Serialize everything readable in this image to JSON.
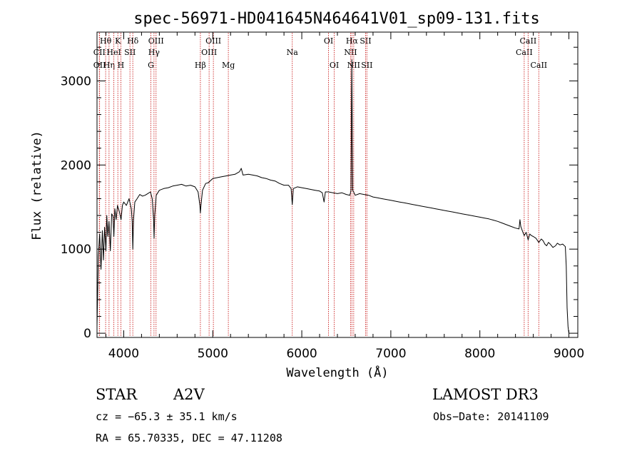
{
  "chart_data": {
    "type": "line",
    "title": "spec-56971-HD041645N464641V01_sp09-131.fits",
    "xlabel": "Wavelength (Å)",
    "ylabel": "Flux (relative)",
    "xlim": [
      3700,
      9100
    ],
    "ylim": [
      -50,
      3580
    ],
    "x_ticks": [
      4000,
      5000,
      6000,
      7000,
      8000,
      9000
    ],
    "x_tick_labels": [
      "4000",
      "5000",
      "6000",
      "7000",
      "8000",
      "9000"
    ],
    "y_ticks": [
      0,
      1000,
      2000,
      3000
    ],
    "y_tick_labels": [
      "0",
      "1000",
      "2000",
      "3000"
    ],
    "x_minor_step": 200,
    "y_minor_step": 200,
    "series": [
      {
        "name": "flux",
        "points": [
          [
            3700,
            80
          ],
          [
            3715,
            920
          ],
          [
            3730,
            1180
          ],
          [
            3745,
            760
          ],
          [
            3760,
            1220
          ],
          [
            3772,
            870
          ],
          [
            3785,
            1260
          ],
          [
            3800,
            980
          ],
          [
            3810,
            1400
          ],
          [
            3822,
            1150
          ],
          [
            3835,
            1330
          ],
          [
            3850,
            980
          ],
          [
            3865,
            1420
          ],
          [
            3880,
            1390
          ],
          [
            3889,
            1150
          ],
          [
            3900,
            1480
          ],
          [
            3915,
            1350
          ],
          [
            3930,
            1520
          ],
          [
            3950,
            1450
          ],
          [
            3970,
            1350
          ],
          [
            3985,
            1520
          ],
          [
            4000,
            1560
          ],
          [
            4030,
            1520
          ],
          [
            4060,
            1600
          ],
          [
            4085,
            1480
          ],
          [
            4095,
            1330
          ],
          [
            4102,
            1000
          ],
          [
            4110,
            1350
          ],
          [
            4125,
            1560
          ],
          [
            4150,
            1600
          ],
          [
            4180,
            1650
          ],
          [
            4210,
            1630
          ],
          [
            4240,
            1640
          ],
          [
            4270,
            1660
          ],
          [
            4300,
            1680
          ],
          [
            4320,
            1600
          ],
          [
            4335,
            1350
          ],
          [
            4341,
            1130
          ],
          [
            4348,
            1400
          ],
          [
            4365,
            1640
          ],
          [
            4400,
            1700
          ],
          [
            4450,
            1720
          ],
          [
            4500,
            1730
          ],
          [
            4550,
            1750
          ],
          [
            4600,
            1760
          ],
          [
            4650,
            1770
          ],
          [
            4700,
            1750
          ],
          [
            4750,
            1760
          ],
          [
            4800,
            1740
          ],
          [
            4835,
            1680
          ],
          [
            4855,
            1520
          ],
          [
            4861,
            1430
          ],
          [
            4867,
            1520
          ],
          [
            4885,
            1700
          ],
          [
            4920,
            1780
          ],
          [
            4950,
            1790
          ],
          [
            5000,
            1840
          ],
          [
            5050,
            1850
          ],
          [
            5100,
            1860
          ],
          [
            5150,
            1870
          ],
          [
            5200,
            1880
          ],
          [
            5250,
            1890
          ],
          [
            5300,
            1920
          ],
          [
            5320,
            1960
          ],
          [
            5340,
            1880
          ],
          [
            5400,
            1890
          ],
          [
            5450,
            1880
          ],
          [
            5500,
            1870
          ],
          [
            5550,
            1850
          ],
          [
            5600,
            1840
          ],
          [
            5650,
            1820
          ],
          [
            5700,
            1810
          ],
          [
            5750,
            1780
          ],
          [
            5800,
            1760
          ],
          [
            5850,
            1760
          ],
          [
            5880,
            1720
          ],
          [
            5893,
            1530
          ],
          [
            5905,
            1720
          ],
          [
            5950,
            1740
          ],
          [
            6000,
            1730
          ],
          [
            6050,
            1720
          ],
          [
            6100,
            1710
          ],
          [
            6150,
            1700
          ],
          [
            6200,
            1690
          ],
          [
            6230,
            1670
          ],
          [
            6250,
            1560
          ],
          [
            6265,
            1680
          ],
          [
            6300,
            1680
          ],
          [
            6350,
            1670
          ],
          [
            6400,
            1660
          ],
          [
            6450,
            1670
          ],
          [
            6500,
            1650
          ],
          [
            6540,
            1640
          ],
          [
            6553,
            1700
          ],
          [
            6558,
            2600
          ],
          [
            6562,
            3250
          ],
          [
            6566,
            2600
          ],
          [
            6572,
            1700
          ],
          [
            6600,
            1640
          ],
          [
            6650,
            1660
          ],
          [
            6700,
            1650
          ],
          [
            6750,
            1640
          ],
          [
            6800,
            1620
          ],
          [
            6850,
            1610
          ],
          [
            6900,
            1600
          ],
          [
            6950,
            1590
          ],
          [
            7000,
            1580
          ],
          [
            7050,
            1570
          ],
          [
            7100,
            1560
          ],
          [
            7150,
            1550
          ],
          [
            7200,
            1540
          ],
          [
            7250,
            1530
          ],
          [
            7300,
            1520
          ],
          [
            7350,
            1510
          ],
          [
            7400,
            1500
          ],
          [
            7450,
            1490
          ],
          [
            7500,
            1480
          ],
          [
            7550,
            1470
          ],
          [
            7600,
            1460
          ],
          [
            7650,
            1450
          ],
          [
            7700,
            1440
          ],
          [
            7750,
            1430
          ],
          [
            7800,
            1420
          ],
          [
            7850,
            1410
          ],
          [
            7900,
            1400
          ],
          [
            7950,
            1390
          ],
          [
            8000,
            1380
          ],
          [
            8050,
            1370
          ],
          [
            8100,
            1360
          ],
          [
            8150,
            1345
          ],
          [
            8200,
            1330
          ],
          [
            8250,
            1310
          ],
          [
            8300,
            1290
          ],
          [
            8350,
            1270
          ],
          [
            8400,
            1250
          ],
          [
            8440,
            1240
          ],
          [
            8450,
            1350
          ],
          [
            8460,
            1270
          ],
          [
            8480,
            1210
          ],
          [
            8498,
            1160
          ],
          [
            8520,
            1200
          ],
          [
            8542,
            1110
          ],
          [
            8560,
            1180
          ],
          [
            8580,
            1160
          ],
          [
            8600,
            1150
          ],
          [
            8630,
            1130
          ],
          [
            8662,
            1080
          ],
          [
            8690,
            1120
          ],
          [
            8710,
            1100
          ],
          [
            8730,
            1060
          ],
          [
            8750,
            1040
          ],
          [
            8770,
            1080
          ],
          [
            8790,
            1060
          ],
          [
            8820,
            1020
          ],
          [
            8850,
            1040
          ],
          [
            8870,
            1070
          ],
          [
            8900,
            1050
          ],
          [
            8930,
            1060
          ],
          [
            8960,
            1030
          ],
          [
            8970,
            800
          ],
          [
            8980,
            300
          ],
          [
            8990,
            80
          ],
          [
            9000,
            0
          ]
        ]
      }
    ],
    "line_markers": [
      {
        "name": "Hθ",
        "wavelength": 3797,
        "row": 1
      },
      {
        "name": "Hη",
        "wavelength": 3835,
        "row": 3
      },
      {
        "name": "CII",
        "wavelength": 3726,
        "row": 2
      },
      {
        "name": "OII",
        "wavelength": 3729,
        "row": 3
      },
      {
        "name": "HeI",
        "wavelength": 3889,
        "row": 2
      },
      {
        "name": "K",
        "wavelength": 3934,
        "row": 1
      },
      {
        "name": "H",
        "wavelength": 3968,
        "row": 3
      },
      {
        "name": "SII",
        "wavelength": 4070,
        "row": 2
      },
      {
        "name": "Hδ",
        "wavelength": 4102,
        "row": 1
      },
      {
        "name": "OIII",
        "wavelength": 4363,
        "row": 1
      },
      {
        "name": "Hγ",
        "wavelength": 4340,
        "row": 2
      },
      {
        "name": "G",
        "wavelength": 4305,
        "row": 3
      },
      {
        "name": "Hβ",
        "wavelength": 4861,
        "row": 3
      },
      {
        "name": "OIII",
        "wavelength": 4959,
        "row": 2
      },
      {
        "name": "OIII",
        "wavelength": 5007,
        "row": 1
      },
      {
        "name": "Mg",
        "wavelength": 5175,
        "row": 3
      },
      {
        "name": "Na",
        "wavelength": 5893,
        "row": 2
      },
      {
        "name": "OI",
        "wavelength": 6300,
        "row": 1
      },
      {
        "name": "OI",
        "wavelength": 6364,
        "row": 3
      },
      {
        "name": "NII",
        "wavelength": 6548,
        "row": 2
      },
      {
        "name": "Hα",
        "wavelength": 6563,
        "row": 1
      },
      {
        "name": "NII",
        "wavelength": 6583,
        "row": 3
      },
      {
        "name": "SII",
        "wavelength": 6716,
        "row": 1
      },
      {
        "name": "SII",
        "wavelength": 6731,
        "row": 3
      },
      {
        "name": "CaII",
        "wavelength": 8498,
        "row": 2
      },
      {
        "name": "CaII",
        "wavelength": 8542,
        "row": 1
      },
      {
        "name": "CaII",
        "wavelength": 8662,
        "row": 3
      }
    ]
  },
  "info": {
    "object_class": "STAR",
    "subclass": "A2V",
    "survey": "LAMOST DR3",
    "redshift": "cz = −65.3 ± 35.1 km/s",
    "obs_date": "Obs−Date: 20141109",
    "coords": "RA =  65.70335, DEC =  47.11208"
  }
}
